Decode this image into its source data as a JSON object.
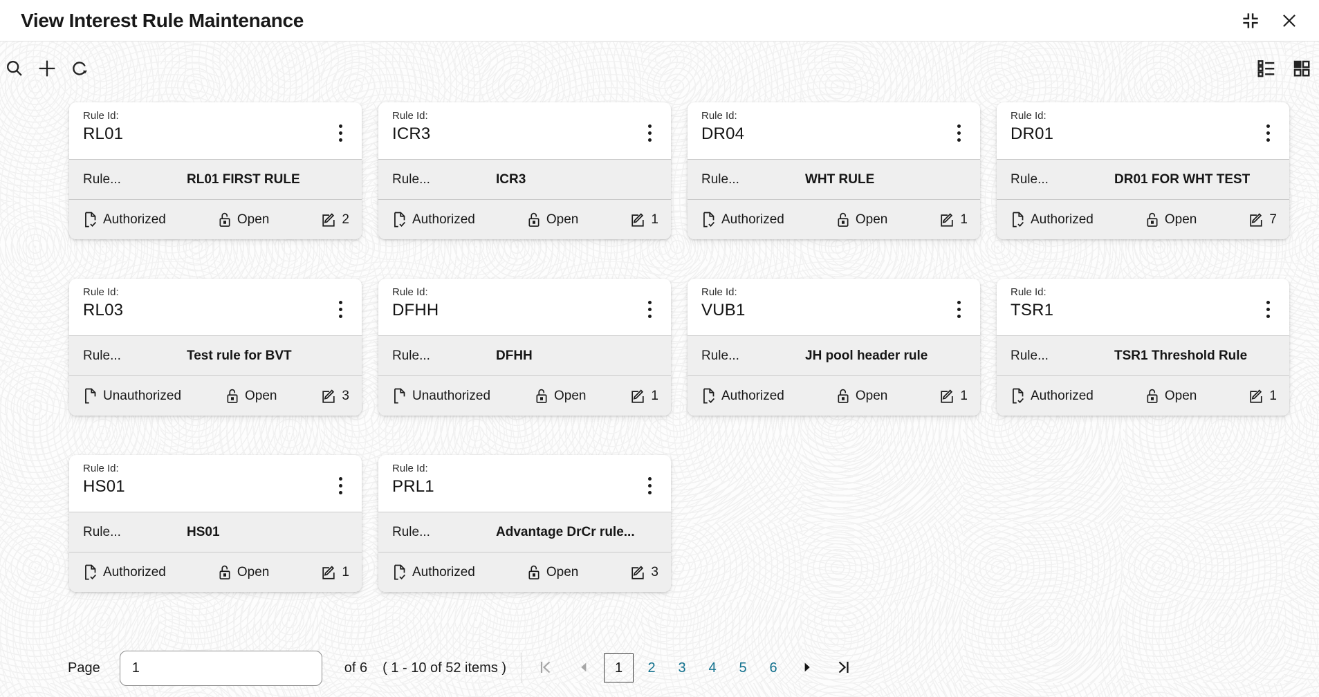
{
  "header": {
    "title": "View Interest Rule Maintenance"
  },
  "cards": [
    {
      "rule_id_label": "Rule Id:",
      "rule_id": "RL01",
      "rule_label": "Rule...",
      "rule_description": "RL01 FIRST RULE",
      "auth_status": "Authorized",
      "record_status": "Open",
      "mod_count": "2"
    },
    {
      "rule_id_label": "Rule Id:",
      "rule_id": "ICR3",
      "rule_label": "Rule...",
      "rule_description": "ICR3",
      "auth_status": "Authorized",
      "record_status": "Open",
      "mod_count": "1"
    },
    {
      "rule_id_label": "Rule Id:",
      "rule_id": "DR04",
      "rule_label": "Rule...",
      "rule_description": "WHT RULE",
      "auth_status": "Authorized",
      "record_status": "Open",
      "mod_count": "1"
    },
    {
      "rule_id_label": "Rule Id:",
      "rule_id": "DR01",
      "rule_label": "Rule...",
      "rule_description": "DR01 FOR WHT TEST",
      "auth_status": "Authorized",
      "record_status": "Open",
      "mod_count": "7"
    },
    {
      "rule_id_label": "Rule Id:",
      "rule_id": "RL03",
      "rule_label": "Rule...",
      "rule_description": "Test rule for BVT",
      "auth_status": "Unauthorized",
      "record_status": "Open",
      "mod_count": "3"
    },
    {
      "rule_id_label": "Rule Id:",
      "rule_id": "DFHH",
      "rule_label": "Rule...",
      "rule_description": "DFHH",
      "auth_status": "Unauthorized",
      "record_status": "Open",
      "mod_count": "1"
    },
    {
      "rule_id_label": "Rule Id:",
      "rule_id": "VUB1",
      "rule_label": "Rule...",
      "rule_description": "JH pool header rule",
      "auth_status": "Authorized",
      "record_status": "Open",
      "mod_count": "1"
    },
    {
      "rule_id_label": "Rule Id:",
      "rule_id": "TSR1",
      "rule_label": "Rule...",
      "rule_description": "TSR1 Threshold Rule",
      "auth_status": "Authorized",
      "record_status": "Open",
      "mod_count": "1"
    },
    {
      "rule_id_label": "Rule Id:",
      "rule_id": "HS01",
      "rule_label": "Rule...",
      "rule_description": "HS01",
      "auth_status": "Authorized",
      "record_status": "Open",
      "mod_count": "1"
    },
    {
      "rule_id_label": "Rule Id:",
      "rule_id": "PRL1",
      "rule_label": "Rule...",
      "rule_description": "Advantage DrCr rule...",
      "auth_status": "Authorized",
      "record_status": "Open",
      "mod_count": "3"
    }
  ],
  "pagination": {
    "page_label": "Page",
    "page_input_value": "1",
    "of_label": "of 6",
    "items_summary": "( 1 - 10 of 52 items )",
    "pages": [
      "1",
      "2",
      "3",
      "4",
      "5",
      "6"
    ],
    "current_page": "1"
  },
  "colors": {
    "accent_teal": "#11708d",
    "card_row_bg": "#efefef",
    "disabled_gray": "#a6a6a6"
  }
}
